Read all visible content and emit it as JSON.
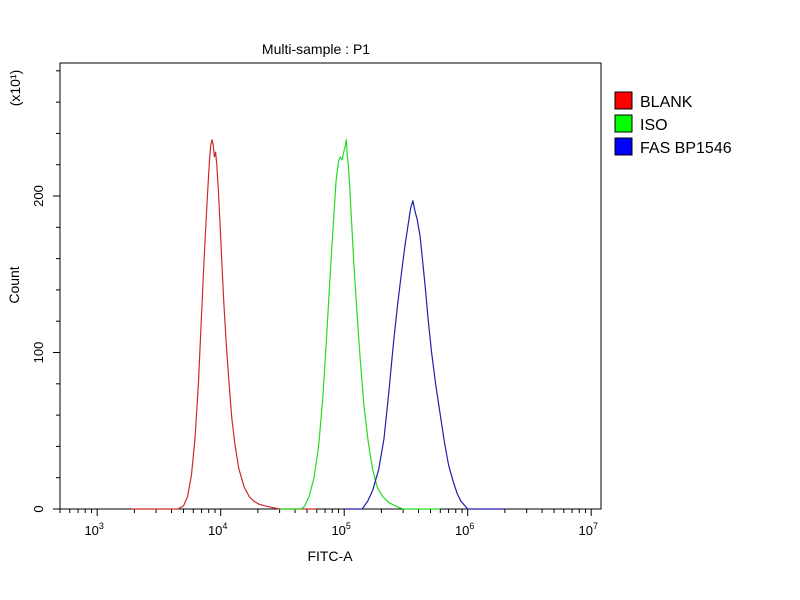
{
  "chart_data": {
    "type": "line",
    "title": "Multi-sample : P1",
    "xlabel": "FITC-A",
    "ylabel": "Count",
    "y_multiplier": "(x10¹)",
    "x_scale": "log",
    "xlim": [
      500,
      12000000
    ],
    "ylim": [
      0,
      285
    ],
    "x_ticks": [
      {
        "value": 1000,
        "base": "10",
        "exp": "3"
      },
      {
        "value": 10000,
        "base": "10",
        "exp": "4"
      },
      {
        "value": 100000,
        "base": "10",
        "exp": "5"
      },
      {
        "value": 1000000,
        "base": "10",
        "exp": "6"
      },
      {
        "value": 10000000,
        "base": "10",
        "exp": "7"
      }
    ],
    "y_ticks": [
      {
        "value": 0,
        "label": "0"
      },
      {
        "value": 100,
        "label": "100"
      },
      {
        "value": 200,
        "label": "200"
      }
    ],
    "grid": false,
    "legend": {
      "position": "right-top"
    },
    "series": [
      {
        "name": "BLANK",
        "color": "#cc2a2a",
        "legend_color": "#ff0000",
        "x": [
          1900,
          3000,
          4500,
          5000,
          5400,
          5800,
          6200,
          6600,
          7000,
          7400,
          7800,
          8100,
          8300,
          8500,
          8700,
          8900,
          9100,
          9300,
          9600,
          9900,
          10200,
          10600,
          11100,
          11700,
          12300,
          13000,
          14000,
          15500,
          17000,
          18500,
          20500,
          23000,
          26000,
          30000,
          60000
        ],
        "y": [
          0,
          0,
          0,
          2,
          8,
          22,
          45,
          80,
          125,
          165,
          200,
          222,
          232,
          236,
          233,
          225,
          228,
          220,
          202,
          180,
          158,
          132,
          105,
          80,
          58,
          42,
          26,
          14,
          8,
          5,
          3,
          2,
          1,
          0,
          0
        ]
      },
      {
        "name": "ISO",
        "color": "#22dd22",
        "legend_color": "#00ff00",
        "x": [
          30000,
          45000,
          48000,
          52000,
          57000,
          62000,
          67000,
          72000,
          77000,
          82000,
          86000,
          90000,
          93000,
          96000,
          99000,
          102000,
          104000,
          106000,
          108000,
          111000,
          115000,
          120000,
          127000,
          135000,
          145000,
          157000,
          170000,
          185000,
          205000,
          230000,
          260000,
          300000,
          600000
        ],
        "y": [
          0,
          0,
          2,
          8,
          20,
          40,
          70,
          110,
          150,
          185,
          210,
          222,
          225,
          223,
          228,
          232,
          236,
          226,
          220,
          205,
          182,
          155,
          125,
          95,
          65,
          42,
          25,
          14,
          8,
          4,
          2,
          0,
          0
        ]
      },
      {
        "name": "FAS BP1546",
        "color": "#2020aa",
        "legend_color": "#0000ff",
        "x": [
          100000,
          140000,
          155000,
          170000,
          190000,
          210000,
          230000,
          250000,
          270000,
          290000,
          310000,
          330000,
          345000,
          360000,
          375000,
          390000,
          410000,
          430000,
          455000,
          480000,
          510000,
          550000,
          600000,
          650000,
          700000,
          760000,
          820000,
          880000,
          950000,
          1000000,
          2000000
        ],
        "y": [
          0,
          0,
          5,
          12,
          25,
          45,
          75,
          105,
          130,
          150,
          168,
          182,
          192,
          197,
          190,
          185,
          175,
          160,
          140,
          120,
          100,
          80,
          60,
          42,
          28,
          18,
          10,
          5,
          2,
          0,
          0
        ]
      }
    ]
  }
}
